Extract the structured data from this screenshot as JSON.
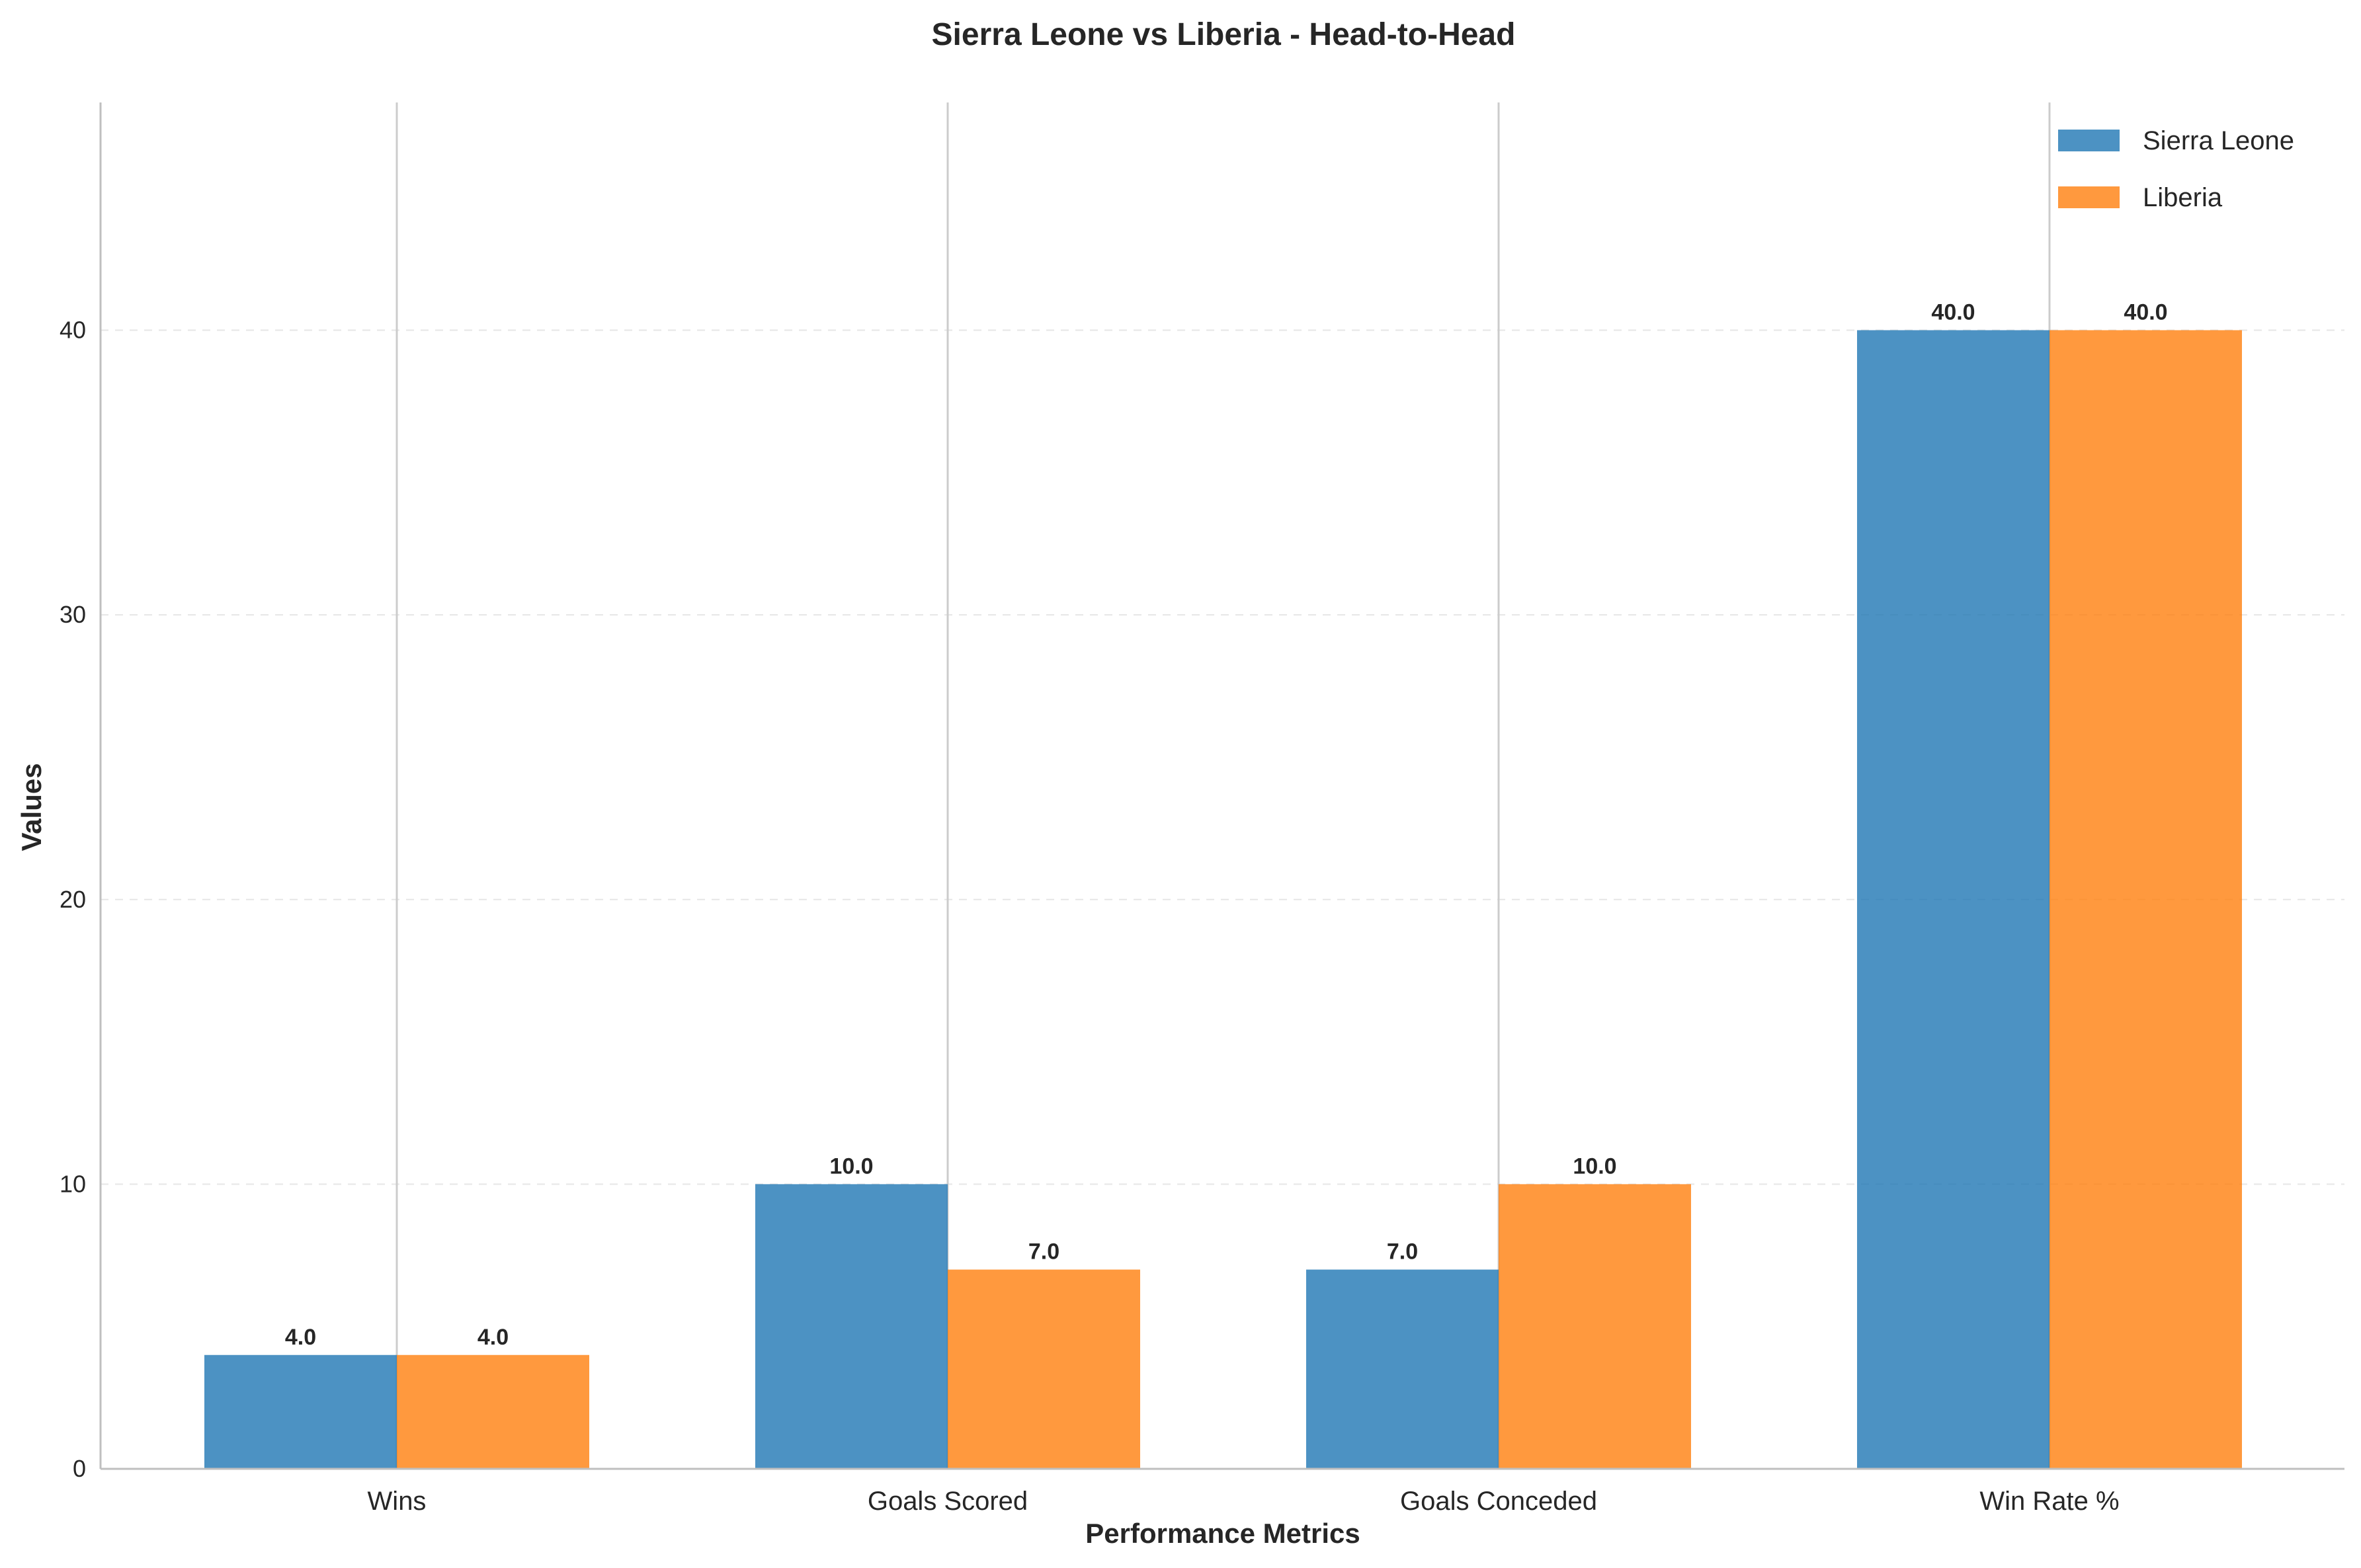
{
  "chart_data": {
    "type": "bar",
    "title": "Sierra Leone vs Liberia - Head-to-Head",
    "xlabel": "Performance Metrics",
    "ylabel": "Values",
    "categories": [
      "Wins",
      "Goals Scored",
      "Goals Conceded",
      "Win Rate %"
    ],
    "series": [
      {
        "name": "Sierra Leone",
        "values": [
          4.0,
          10.0,
          7.0,
          40.0
        ],
        "labels": [
          "4.0",
          "10.0",
          "7.0",
          "40.0"
        ],
        "color": "#1f77b4"
      },
      {
        "name": "Liberia",
        "values": [
          4.0,
          7.0,
          10.0,
          40.0
        ],
        "labels": [
          "4.0",
          "7.0",
          "10.0",
          "40.0"
        ],
        "color": "#ff7f0e"
      }
    ],
    "ylim": [
      0,
      48
    ],
    "yticks": [
      0,
      10,
      20,
      30,
      40
    ],
    "ytick_labels": [
      "0",
      "10",
      "20",
      "30",
      "40"
    ],
    "grid": "y-dashed",
    "legend_position": "top-right"
  }
}
